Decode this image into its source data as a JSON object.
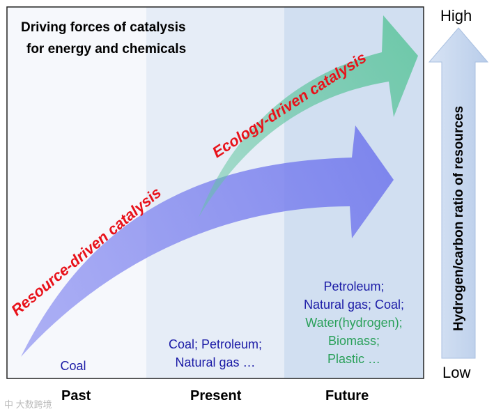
{
  "title_line1": "Driving forces of catalysis",
  "title_line2": "for energy and chemicals",
  "eras": [
    "Past",
    "Present",
    "Future"
  ],
  "resources": {
    "past": [
      "Coal"
    ],
    "present": [
      "Coal; Petroleum;",
      "Natural gas …"
    ],
    "future_fossil": [
      "Petroleum;",
      "Natural gas; Coal;"
    ],
    "future_green": [
      "Water(hydrogen);",
      "Biomass;",
      "Plastic …"
    ]
  },
  "arrows": {
    "resource_label": "Resource-driven catalysis",
    "ecology_label": "Ecology-driven catalysis"
  },
  "scale": {
    "high": "High",
    "low": "Low",
    "label": "Hydrogen/carbon ratio of resources"
  },
  "watermark": "中 大数跨境",
  "colors": {
    "resource_arrow": "#7f84ee",
    "ecology_arrow": "#7fd3b4",
    "label_red": "#e8121a",
    "text_blue": "#1a1aa6",
    "text_green": "#2aa05a",
    "scale_arrow": "#c9d9f0"
  }
}
